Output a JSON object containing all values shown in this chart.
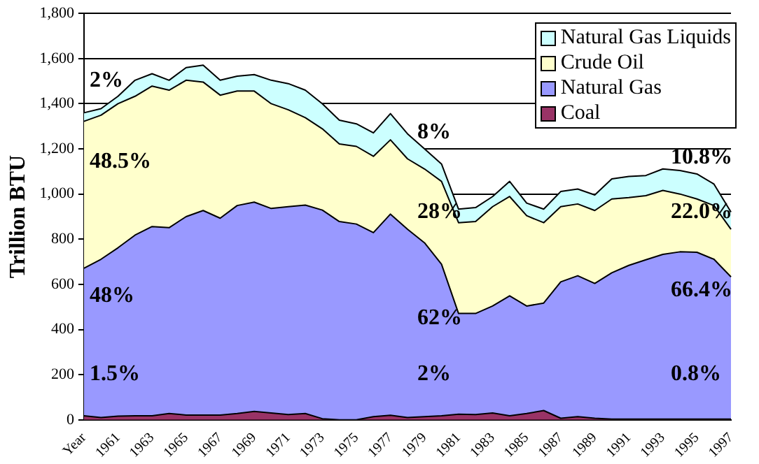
{
  "chart_data": {
    "type": "area",
    "ylabel": "Trillion BTU",
    "categories": [
      "Year",
      null,
      "1961",
      null,
      "1963",
      null,
      "1965",
      null,
      "1967",
      null,
      "1969",
      null,
      "1971",
      null,
      "1973",
      null,
      "1975",
      null,
      "1977",
      null,
      "1979",
      null,
      "1981",
      null,
      "1983",
      null,
      "1985",
      null,
      "1987",
      null,
      "1989",
      null,
      "1991",
      null,
      "1993",
      null,
      "1995",
      null,
      "1997"
    ],
    "stacked": true,
    "series": [
      {
        "name": "Coal",
        "color": "#993366",
        "values": [
          18,
          10,
          16,
          18,
          18,
          28,
          21,
          21,
          21,
          28,
          37,
          30,
          23,
          28,
          5,
          0,
          0,
          14,
          20,
          10,
          14,
          18,
          25,
          23,
          30,
          18,
          28,
          41,
          7,
          14,
          7,
          3,
          3,
          3,
          3,
          3,
          3,
          3,
          3
        ]
      },
      {
        "name": "Natural Gas",
        "color": "#9999ff",
        "values": [
          653,
          701,
          746,
          800,
          838,
          823,
          879,
          906,
          872,
          921,
          927,
          906,
          921,
          923,
          924,
          878,
          867,
          815,
          891,
          834,
          770,
          671,
          446,
          448,
          474,
          531,
          476,
          476,
          604,
          624,
          597,
          648,
          681,
          706,
          730,
          741,
          739,
          708,
          630
        ]
      },
      {
        "name": "Crude Oil",
        "color": "#ffffcc",
        "values": [
          651,
          638,
          638,
          615,
          622,
          609,
          604,
          569,
          545,
          507,
          492,
          464,
          429,
          387,
          360,
          344,
          344,
          338,
          329,
          312,
          327,
          367,
          402,
          407,
          440,
          440,
          400,
          356,
          333,
          318,
          323,
          327,
          300,
          284,
          283,
          256,
          236,
          238,
          211
        ]
      },
      {
        "name": "Natural Gas Liquids",
        "color": "#ccffff",
        "values": [
          38,
          29,
          33,
          71,
          55,
          44,
          56,
          75,
          66,
          66,
          73,
          104,
          116,
          122,
          111,
          105,
          100,
          104,
          116,
          111,
          89,
          77,
          60,
          62,
          45,
          67,
          56,
          60,
          67,
          66,
          69,
          89,
          94,
          89,
          95,
          104,
          111,
          95,
          76
        ]
      }
    ],
    "ylim": [
      0,
      1800
    ],
    "yticks": [
      0,
      {
        "value": 200,
        "label": "200"
      },
      {
        "value": 400,
        "label": "400"
      },
      {
        "value": 600,
        "label": "600"
      },
      {
        "value": 800,
        "label": "800"
      },
      {
        "value": 1000,
        "label": "1,000"
      },
      {
        "value": 1200,
        "label": "1,200"
      },
      {
        "value": 1400,
        "label": "1,400"
      },
      {
        "value": 1600,
        "label": "1,600"
      },
      {
        "value": 1800,
        "label": "1,800"
      }
    ],
    "grid": "y",
    "legend": "top right",
    "annotations": [
      "2%",
      "48.5%",
      "48%",
      "1.5%",
      "8%",
      "28%",
      "62%",
      "2%",
      "10.8%",
      "22.0%",
      "66.4%",
      "0.8%"
    ]
  }
}
